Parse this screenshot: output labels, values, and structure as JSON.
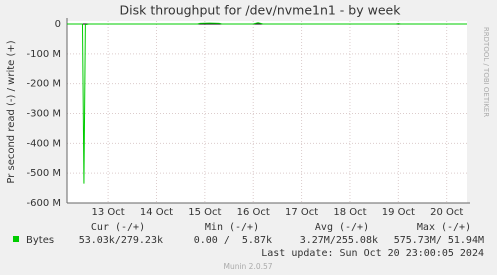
{
  "chart_data": {
    "type": "line",
    "title": "Disk throughput for /dev/nvme1n1 - by week",
    "y_label": "Pr second read (-) / write (+)",
    "side_text": "RRDTOOL / TOBI OETIKER",
    "x": [
      12.15,
      12.4,
      12.47,
      12.5,
      12.53,
      12.6,
      13.5,
      14.5,
      14.85,
      14.9,
      15.1,
      15.3,
      15.35,
      16.0,
      16.05,
      16.1,
      16.2,
      17.5,
      18.5,
      18.95,
      19.0,
      19.05,
      20.0,
      20.42
    ],
    "series": [
      {
        "name": "Bytes",
        "color": "#00cc00",
        "values": [
          0,
          0,
          0,
          -535,
          -2,
          0,
          0,
          0,
          0,
          2,
          3,
          2,
          0,
          0,
          2,
          4,
          0,
          0,
          0,
          0,
          1,
          0,
          0,
          0
        ]
      }
    ],
    "xlim": [
      12.15,
      20.42
    ],
    "ylim": [
      -600,
      10
    ],
    "yticks": [
      {
        "value": 0,
        "label": "0"
      },
      {
        "value": -100,
        "label": "-100 M"
      },
      {
        "value": -200,
        "label": "-200 M"
      },
      {
        "value": -300,
        "label": "-300 M"
      },
      {
        "value": -400,
        "label": "-400 M"
      },
      {
        "value": -500,
        "label": "-500 M"
      },
      {
        "value": -600,
        "label": "-600 M"
      }
    ],
    "xticks": [
      {
        "value": 13,
        "label": "13 Oct"
      },
      {
        "value": 14,
        "label": "14 Oct"
      },
      {
        "value": 15,
        "label": "15 Oct"
      },
      {
        "value": 16,
        "label": "16 Oct"
      },
      {
        "value": 17,
        "label": "17 Oct"
      },
      {
        "value": 18,
        "label": "18 Oct"
      },
      {
        "value": 19,
        "label": "19 Oct"
      },
      {
        "value": 20,
        "label": "20 Oct"
      }
    ],
    "grid": true,
    "legend_table": {
      "headers": [
        "Cur (-/+)",
        "Min (-/+)",
        "Avg (-/+)",
        "Max (-/+)"
      ],
      "row": [
        "53.03k/279.23k",
        "0.00 /  5.87k",
        "3.27M/255.08k",
        "575.73M/ 51.94M"
      ]
    },
    "last_update": "Last update: Sun Oct 20 23:00:05 2024",
    "footer": "Munin 2.0.57"
  }
}
